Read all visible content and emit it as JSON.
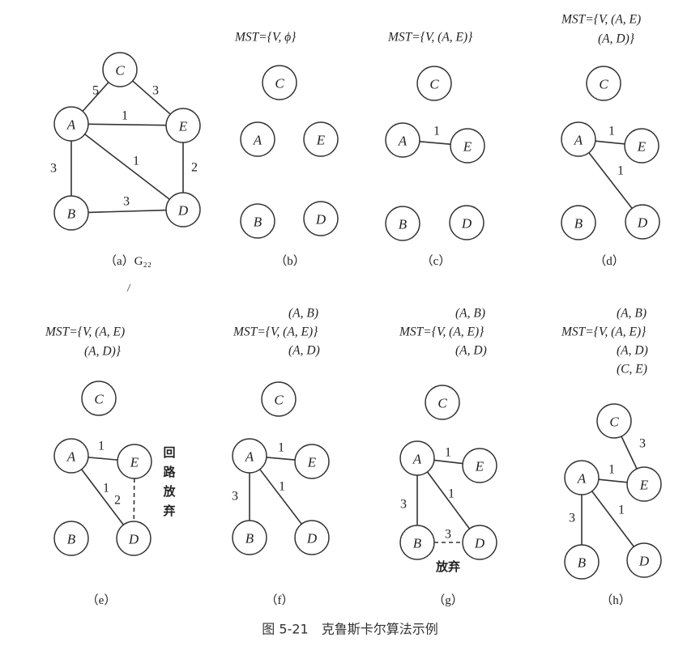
{
  "figure_title": "图 5-21　克鲁斯卡尔算法示例",
  "node_labels": [
    "A",
    "B",
    "C",
    "D",
    "E"
  ],
  "panels": [
    {
      "id": "a",
      "caption": "（a）G₂₂",
      "mst_lines": [],
      "edges": [
        {
          "from": "A",
          "to": "C",
          "weight": "5",
          "style": "solid"
        },
        {
          "from": "C",
          "to": "E",
          "weight": "3",
          "style": "solid"
        },
        {
          "from": "A",
          "to": "E",
          "weight": "1",
          "style": "solid"
        },
        {
          "from": "A",
          "to": "D",
          "weight": "1",
          "style": "solid"
        },
        {
          "from": "A",
          "to": "B",
          "weight": "3",
          "style": "solid"
        },
        {
          "from": "E",
          "to": "D",
          "weight": "2",
          "style": "solid"
        },
        {
          "from": "B",
          "to": "D",
          "weight": "3",
          "style": "solid"
        }
      ],
      "notes": []
    },
    {
      "id": "b",
      "caption": "（b）",
      "mst_lines": [
        "MST={V, ϕ}"
      ],
      "edges": [],
      "notes": []
    },
    {
      "id": "c",
      "caption": "（c）",
      "mst_lines": [
        "MST={V, (A, E)}"
      ],
      "edges": [
        {
          "from": "A",
          "to": "E",
          "weight": "1",
          "style": "solid"
        }
      ],
      "notes": []
    },
    {
      "id": "d",
      "caption": "（d）",
      "mst_lines": [
        "MST={V, (A, E)",
        "(A, D)}"
      ],
      "edges": [
        {
          "from": "A",
          "to": "E",
          "weight": "1",
          "style": "solid"
        },
        {
          "from": "A",
          "to": "D",
          "weight": "1",
          "style": "solid"
        }
      ],
      "notes": []
    },
    {
      "id": "e",
      "caption": "（e）",
      "mst_lines": [
        "MST={V, (A, E)",
        "(A, D)}"
      ],
      "edges": [
        {
          "from": "A",
          "to": "E",
          "weight": "1",
          "style": "solid"
        },
        {
          "from": "A",
          "to": "D",
          "weight": "1",
          "style": "solid"
        },
        {
          "from": "E",
          "to": "D",
          "weight": "2",
          "style": "dashed"
        }
      ],
      "notes": [
        "回",
        "路",
        "放",
        "弃"
      ]
    },
    {
      "id": "f",
      "caption": "（f）",
      "mst_lines": [
        "(A, B)",
        "MST={V, (A, E)}",
        "(A, D)"
      ],
      "edges": [
        {
          "from": "A",
          "to": "E",
          "weight": "1",
          "style": "solid"
        },
        {
          "from": "A",
          "to": "D",
          "weight": "1",
          "style": "solid"
        },
        {
          "from": "A",
          "to": "B",
          "weight": "3",
          "style": "solid"
        }
      ],
      "notes": []
    },
    {
      "id": "g",
      "caption": "（g）",
      "mst_lines": [
        "(A, B)",
        "MST={V, (A, E)}",
        "(A, D)"
      ],
      "edges": [
        {
          "from": "A",
          "to": "E",
          "weight": "1",
          "style": "solid"
        },
        {
          "from": "A",
          "to": "D",
          "weight": "1",
          "style": "solid"
        },
        {
          "from": "A",
          "to": "B",
          "weight": "3",
          "style": "solid"
        },
        {
          "from": "B",
          "to": "D",
          "weight": "3",
          "style": "dashed"
        }
      ],
      "notes": [
        "放弃"
      ]
    },
    {
      "id": "h",
      "caption": "（h）",
      "mst_lines": [
        "(A, B)",
        "MST={V, (A, E)}",
        "(A, D)",
        "(C, E)"
      ],
      "edges": [
        {
          "from": "C",
          "to": "E",
          "weight": "3",
          "style": "solid"
        },
        {
          "from": "A",
          "to": "E",
          "weight": "1",
          "style": "solid"
        },
        {
          "from": "A",
          "to": "D",
          "weight": "1",
          "style": "solid"
        },
        {
          "from": "A",
          "to": "B",
          "weight": "3",
          "style": "solid"
        }
      ],
      "notes": []
    }
  ]
}
